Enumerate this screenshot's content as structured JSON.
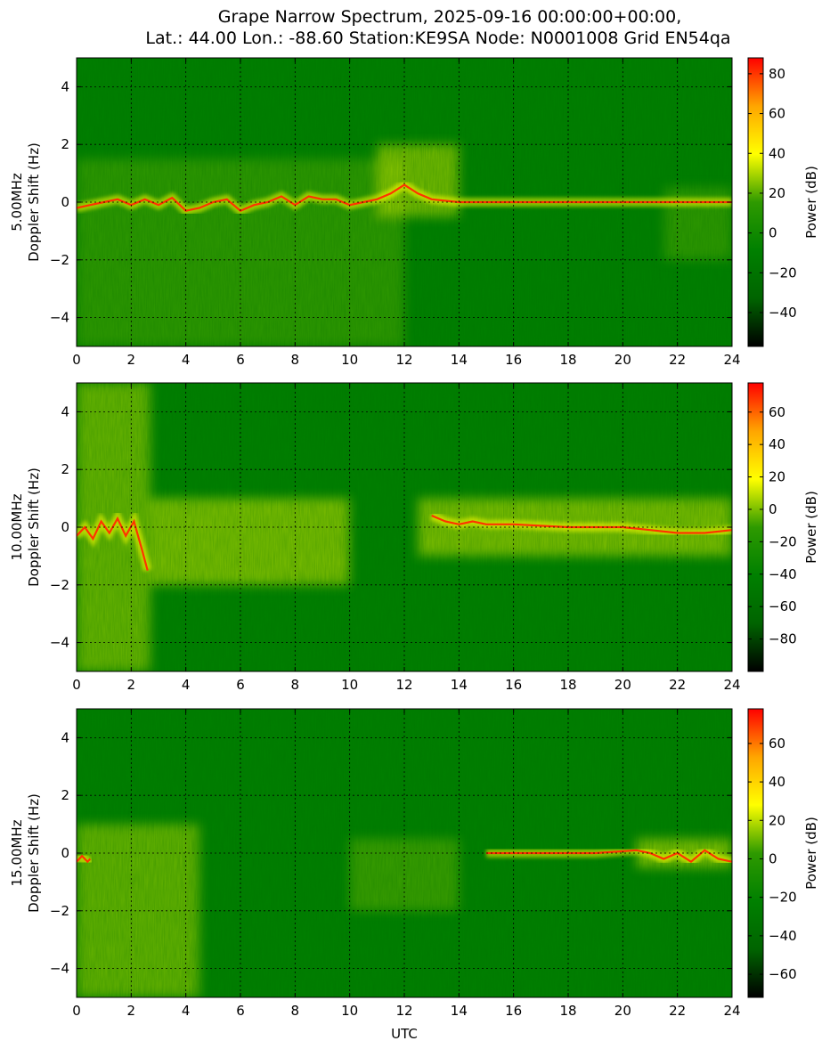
{
  "figure": {
    "title_line1": "Grape Narrow Spectrum, 2025-09-16 00:00:00+00:00,",
    "title_line2": "Lat.: 44.00 Lon.: -88.60 Station:KE9SA Node: N0001008 Grid EN54qa",
    "xlabel": "UTC"
  },
  "colors": {
    "cmap": [
      "#000000",
      "#006400",
      "#008000",
      "#2e9a00",
      "#ffff00",
      "#ffa500",
      "#ff0000"
    ],
    "background": "#008000",
    "grid": "#000000"
  },
  "chart_data": [
    {
      "type": "heatmap",
      "band_label": "5.00MHz",
      "ylabel": "Doppler Shift (Hz)",
      "xlim": [
        0,
        24
      ],
      "ylim": [
        -5,
        5
      ],
      "xticks": [
        0,
        2,
        4,
        6,
        8,
        10,
        12,
        14,
        16,
        18,
        20,
        22,
        24
      ],
      "yticks": [
        -4,
        -2,
        0,
        2,
        4
      ],
      "grid": true,
      "colorbar": {
        "label": "Power (dB)",
        "range": [
          -57,
          88
        ],
        "ticks": [
          -40,
          -20,
          0,
          20,
          40,
          60,
          80
        ]
      },
      "doppler_trace": {
        "x": [
          0,
          0.5,
          1,
          1.5,
          2,
          2.5,
          3,
          3.5,
          4,
          4.5,
          5,
          5.5,
          6,
          6.5,
          7,
          7.5,
          8,
          8.5,
          9,
          9.5,
          10,
          10.5,
          11,
          11.5,
          12,
          12.5,
          13,
          14,
          16,
          18,
          20,
          22,
          24
        ],
        "y": [
          -0.2,
          -0.1,
          0,
          0.1,
          -0.1,
          0.1,
          -0.1,
          0.15,
          -0.3,
          -0.2,
          0,
          0.1,
          -0.3,
          -0.1,
          0,
          0.2,
          -0.1,
          0.2,
          0.1,
          0.1,
          -0.1,
          0,
          0.1,
          0.3,
          0.6,
          0.3,
          0.1,
          0,
          0,
          0,
          0,
          0,
          0
        ]
      },
      "diffuse_regions": [
        {
          "x": [
            0,
            12
          ],
          "y": [
            -5,
            1.5
          ],
          "power_db": 20
        },
        {
          "x": [
            11,
            14
          ],
          "y": [
            -0.5,
            2
          ],
          "power_db": 35
        },
        {
          "x": [
            21.5,
            24
          ],
          "y": [
            -2,
            0.5
          ],
          "power_db": 20
        }
      ]
    },
    {
      "type": "heatmap",
      "band_label": "10.00MHz",
      "ylabel": "Doppler Shift (Hz)",
      "xlim": [
        0,
        24
      ],
      "ylim": [
        -5,
        5
      ],
      "xticks": [
        0,
        2,
        4,
        6,
        8,
        10,
        12,
        14,
        16,
        18,
        20,
        22,
        24
      ],
      "yticks": [
        -4,
        -2,
        0,
        2,
        4
      ],
      "grid": true,
      "colorbar": {
        "label": "Power (dB)",
        "range": [
          -100,
          78
        ],
        "ticks": [
          -80,
          -60,
          -40,
          -20,
          0,
          20,
          40,
          60
        ]
      },
      "doppler_trace": {
        "x": [
          0,
          0.3,
          0.6,
          0.9,
          1.2,
          1.5,
          1.8,
          2.1,
          2.4,
          2.6,
          13,
          13.5,
          14,
          14.5,
          15,
          16,
          18,
          20,
          21,
          22,
          23,
          24
        ],
        "y": [
          -0.3,
          0,
          -0.4,
          0.2,
          -0.2,
          0.3,
          -0.3,
          0.2,
          -0.8,
          -1.5,
          0.4,
          0.2,
          0.1,
          0.2,
          0.1,
          0.1,
          0,
          0,
          -0.1,
          -0.2,
          -0.2,
          -0.1
        ]
      },
      "diffuse_regions": [
        {
          "x": [
            0,
            2.7
          ],
          "y": [
            -5,
            5
          ],
          "power_db": 10
        },
        {
          "x": [
            2.7,
            10
          ],
          "y": [
            -2,
            1
          ],
          "power_db": 15
        },
        {
          "x": [
            12.5,
            24
          ],
          "y": [
            -1,
            1
          ],
          "power_db": 15
        }
      ]
    },
    {
      "type": "heatmap",
      "band_label": "15.00MHz",
      "ylabel": "Doppler Shift (Hz)",
      "xlim": [
        0,
        24
      ],
      "ylim": [
        -5,
        5
      ],
      "xticks": [
        0,
        2,
        4,
        6,
        8,
        10,
        12,
        14,
        16,
        18,
        20,
        22,
        24
      ],
      "yticks": [
        -4,
        -2,
        0,
        2,
        4
      ],
      "grid": true,
      "colorbar": {
        "label": "Power (dB)",
        "range": [
          -72,
          78
        ],
        "ticks": [
          -60,
          -40,
          -20,
          0,
          20,
          40,
          60
        ]
      },
      "doppler_trace": {
        "x": [
          0,
          0.2,
          0.4,
          0.5,
          15,
          17,
          19,
          20.5,
          21,
          21.5,
          22,
          22.5,
          23,
          23.5,
          24
        ],
        "y": [
          -0.3,
          -0.1,
          -0.3,
          -0.2,
          0,
          0,
          0,
          0.1,
          0,
          -0.2,
          0,
          -0.3,
          0.1,
          -0.2,
          -0.3
        ]
      },
      "diffuse_regions": [
        {
          "x": [
            0,
            4.5
          ],
          "y": [
            -5,
            1
          ],
          "power_db": 20
        },
        {
          "x": [
            10,
            14
          ],
          "y": [
            -2,
            0.5
          ],
          "power_db": 10
        },
        {
          "x": [
            20.5,
            24
          ],
          "y": [
            -0.5,
            0.5
          ],
          "power_db": 25
        }
      ]
    }
  ]
}
